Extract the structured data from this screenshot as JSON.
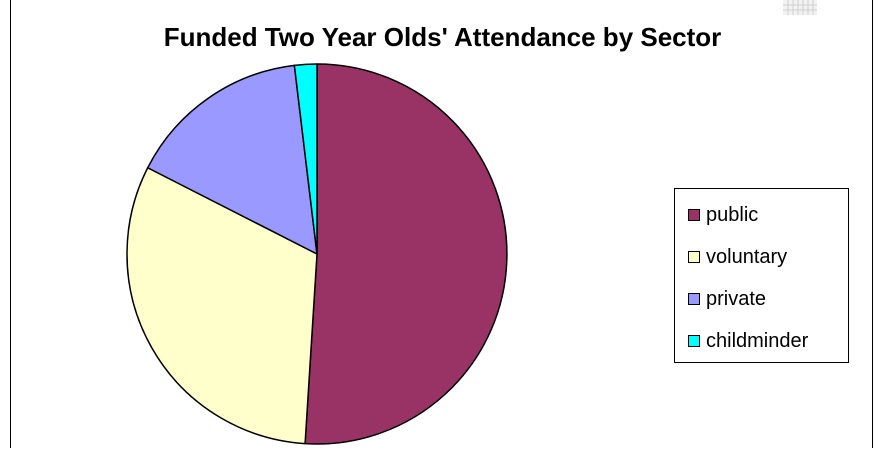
{
  "chart_data": {
    "type": "pie",
    "title": "Funded Two Year Olds' Attendance by Sector",
    "categories": [
      "public",
      "voluntary",
      "private",
      "childminder"
    ],
    "values": [
      51,
      31.5,
      15.6,
      1.9
    ],
    "colors": [
      "#993366",
      "#FFFFCC",
      "#9999FF",
      "#00FFFF"
    ],
    "legend_position": "right",
    "start_angle_deg": 0,
    "direction": "clockwise"
  }
}
